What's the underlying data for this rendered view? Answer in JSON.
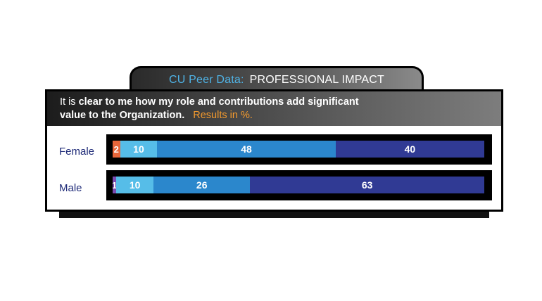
{
  "header": {
    "lead": "CU Peer Data:",
    "topic": "PROFESSIONAL IMPACT"
  },
  "question": {
    "prefix": "It is ",
    "bold_line1": "clear to me how my role and contributions add significant",
    "bold_line2": "value to the Organization.",
    "note": "Results in %."
  },
  "colors": {
    "segments": [
      "#e8663a",
      "#7b4bb0",
      "#56bde8",
      "#2b87cc",
      "#303a94"
    ]
  },
  "chart_data": {
    "type": "bar",
    "orientation": "horizontal",
    "stacked": true,
    "categories": [
      "Female",
      "Male"
    ],
    "series": [
      {
        "values": [
          2,
          1
        ]
      },
      {
        "values": [
          10,
          10
        ]
      },
      {
        "values": [
          48,
          26
        ]
      },
      {
        "values": [
          40,
          63
        ]
      }
    ],
    "title": "CU Peer Data: PROFESSIONAL IMPACT",
    "xlabel": "",
    "ylabel": "",
    "unit": "%"
  }
}
